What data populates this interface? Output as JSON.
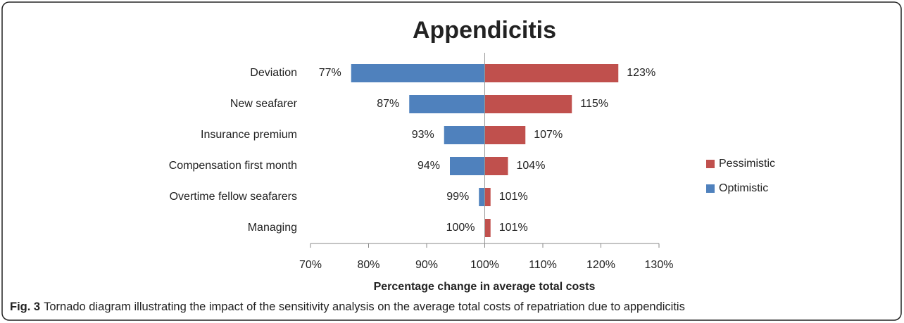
{
  "chart_data": {
    "type": "bar",
    "orientation": "horizontal",
    "title": "Appendicitis",
    "categories": [
      "Deviation",
      "New seafarer",
      "Insurance premium",
      "Compensation first month",
      "Overtime fellow seafarers",
      "Managing"
    ],
    "base": 100,
    "series": [
      {
        "name": "Optimistic",
        "color": "#4f81bd",
        "values": [
          77,
          87,
          93,
          94,
          99,
          100
        ],
        "value_labels": [
          "77%",
          "87%",
          "93%",
          "94%",
          "99%",
          "100%"
        ]
      },
      {
        "name": "Pessimistic",
        "color": "#c0504d",
        "values": [
          123,
          115,
          107,
          104,
          101,
          101
        ],
        "value_labels": [
          "123%",
          "115%",
          "107%",
          "104%",
          "101%",
          "101%"
        ]
      }
    ],
    "xlim": [
      70,
      130
    ],
    "xticks": [
      {
        "value": 70,
        "label": "70%"
      },
      {
        "value": 80,
        "label": "80%"
      },
      {
        "value": 90,
        "label": "90%"
      },
      {
        "value": 100,
        "label": "100%"
      },
      {
        "value": 110,
        "label": "110%"
      },
      {
        "value": 120,
        "label": "120%"
      },
      {
        "value": 130,
        "label": "130%"
      }
    ],
    "xlabel": "Percentage change in average total costs",
    "legend": "right"
  },
  "caption": {
    "label": "Fig. 3",
    "text": "Tornado diagram illustrating the impact of the sensitivity analysis on the average total costs of repatriation due to appendicitis"
  }
}
